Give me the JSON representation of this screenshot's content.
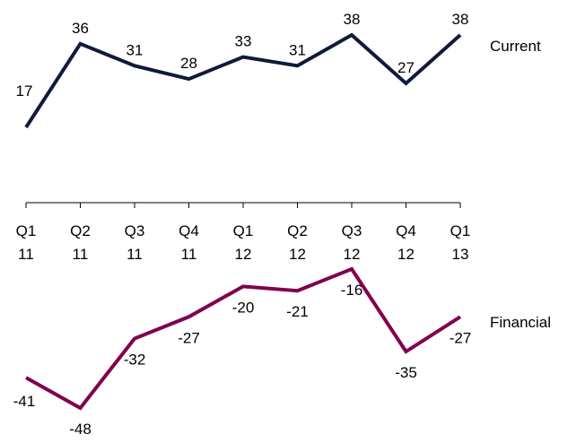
{
  "chart_data": {
    "type": "line",
    "categories": [
      [
        "Q1",
        "11"
      ],
      [
        "Q2",
        "11"
      ],
      [
        "Q3",
        "11"
      ],
      [
        "Q4",
        "11"
      ],
      [
        "Q1",
        "12"
      ],
      [
        "Q2",
        "12"
      ],
      [
        "Q3",
        "12"
      ],
      [
        "Q4",
        "12"
      ],
      [
        "Q1",
        "13"
      ]
    ],
    "series": [
      {
        "name": "Current",
        "color": "#0f1a3c",
        "values": [
          17,
          36,
          31,
          28,
          33,
          31,
          38,
          27,
          38
        ],
        "labels": [
          "17",
          "36",
          "31",
          "28",
          "33",
          "31",
          "38",
          "27",
          "38"
        ],
        "label_position": "above"
      },
      {
        "name": "Financial",
        "color": "#800050",
        "values": [
          -41,
          -48,
          -32,
          -27,
          -20,
          -21,
          -16,
          -35,
          -27
        ],
        "labels": [
          "-41",
          "-48",
          "-32",
          "-27",
          "-20",
          "-21",
          "-16",
          "-35",
          "-27"
        ],
        "label_position": "below"
      }
    ],
    "ylim": [
      -52,
      40
    ],
    "grid": false,
    "legend": "right-end-of-line"
  }
}
